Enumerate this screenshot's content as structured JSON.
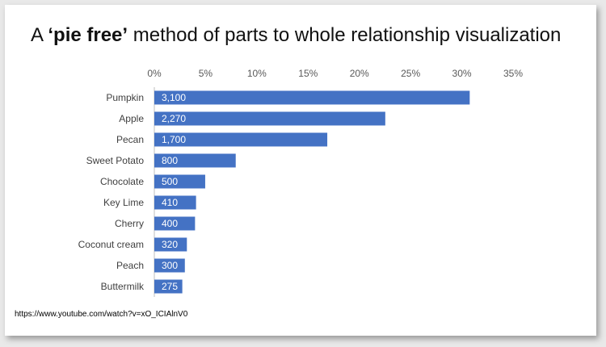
{
  "title": {
    "prefix": "A ",
    "emphasis": "‘pie free’",
    "suffix": " method of parts to whole relationship visualization"
  },
  "source_url": "https://www.youtube.com/watch?v=xO_ICIAlnV0",
  "chart_data": {
    "type": "bar",
    "orientation": "horizontal",
    "categories": [
      "Pumpkin",
      "Apple",
      "Pecan",
      "Sweet Potato",
      "Chocolate",
      "Key Lime",
      "Cherry",
      "Coconut cream",
      "Peach",
      "Buttermilk"
    ],
    "values": [
      3100,
      2270,
      1700,
      800,
      500,
      410,
      400,
      320,
      300,
      275
    ],
    "data_labels": [
      "3,100",
      "2,270",
      "1,700",
      "800",
      "500",
      "410",
      "400",
      "320",
      "300",
      "275"
    ],
    "x_axis": {
      "position": "top",
      "ticks": [
        "0%",
        "5%",
        "10%",
        "15%",
        "20%",
        "25%",
        "30%",
        "35%"
      ],
      "range": [
        0,
        0.35
      ]
    },
    "grid": false,
    "bar_color": "#4472c4"
  }
}
